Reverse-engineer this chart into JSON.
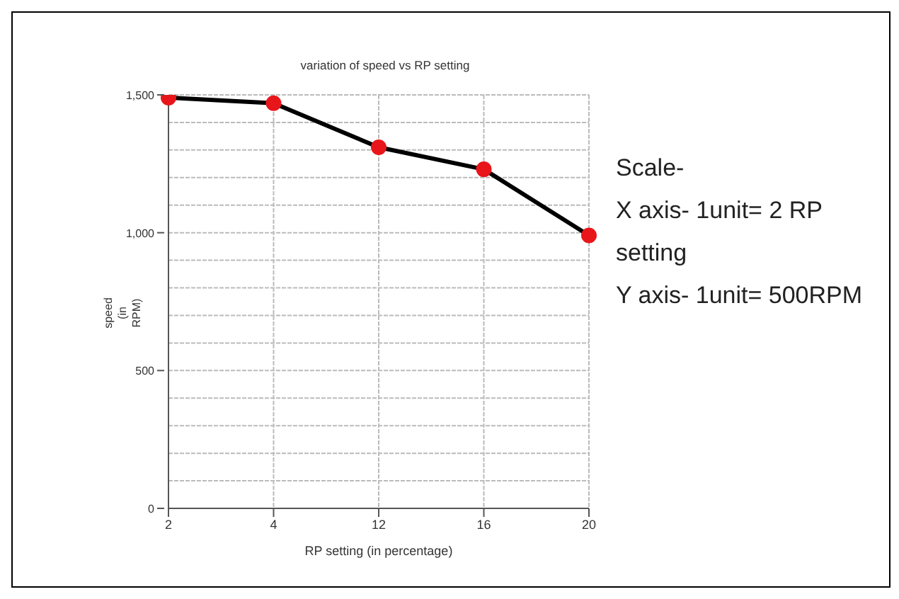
{
  "chart_data": {
    "type": "line",
    "title": "variation of speed vs RP setting",
    "xlabel": "RP setting (in percentage)",
    "ylabel": "speed (in RPM)",
    "categories": [
      "2",
      "4",
      "12",
      "16",
      "20"
    ],
    "series": [
      {
        "color": "#000000",
        "colors": [
          "#e8161b",
          "#e8161b",
          "#e8161b",
          "#e8161b",
          "#e8161b"
        ],
        "values": [
          1490,
          1470,
          1310,
          1230,
          990
        ]
      }
    ],
    "ylim": [
      0,
      1500
    ],
    "yticks": [
      {
        "value": 0,
        "label": "0"
      },
      {
        "value": 100,
        "label": null
      },
      {
        "value": 200,
        "label": null
      },
      {
        "value": 300,
        "label": null
      },
      {
        "value": 400,
        "label": null
      },
      {
        "value": 500,
        "label": "500"
      },
      {
        "value": 600,
        "label": null
      },
      {
        "value": 700,
        "label": null
      },
      {
        "value": 800,
        "label": null
      },
      {
        "value": 900,
        "label": null
      },
      {
        "value": 1000,
        "label": "1,000"
      },
      {
        "value": 1100,
        "label": null
      },
      {
        "value": 1200,
        "label": null
      },
      {
        "value": 1300,
        "label": null
      },
      {
        "value": 1400,
        "label": null
      },
      {
        "value": 1500,
        "label": "1,500"
      }
    ],
    "grid": true,
    "marker": "circle",
    "line_style": "solid",
    "legend": false,
    "annotations": [
      "Scale-\nX axis- 1unit= 2 RP setting\nY axis- 1unit= 500RPM"
    ]
  }
}
